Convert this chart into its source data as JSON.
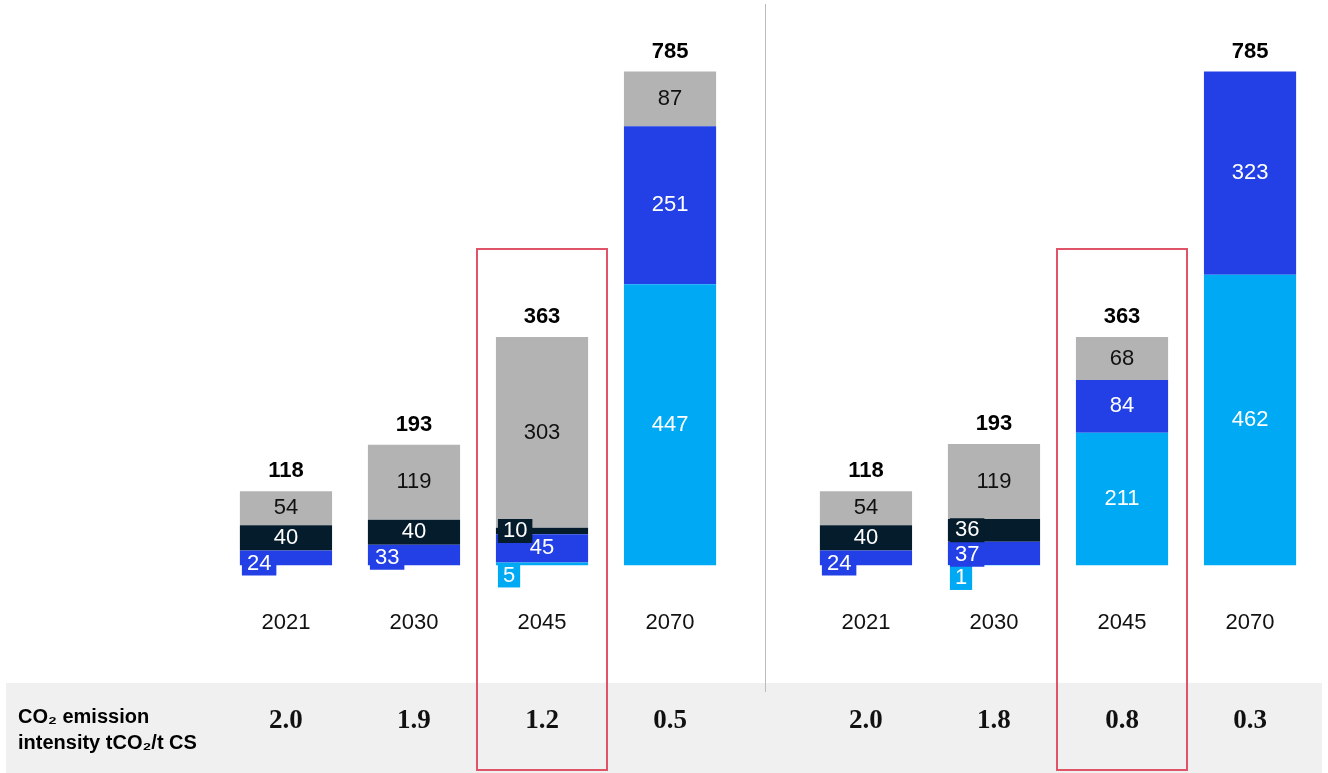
{
  "chart_data": [
    {
      "type": "bar",
      "stacked": true,
      "data_labels": true,
      "tick_labels": "x",
      "categories": [
        "2021",
        "2030",
        "2045",
        "2070"
      ],
      "series": [
        {
          "color": "#00a9f4",
          "values": [
            null,
            null,
            5,
            447
          ]
        },
        {
          "color": "#2240e6",
          "values": [
            24,
            33,
            45,
            251
          ]
        },
        {
          "color": "#051c2c",
          "values": [
            40,
            40,
            10,
            null
          ]
        },
        {
          "color": "#b3b3b3",
          "values": [
            54,
            119,
            303,
            87
          ]
        }
      ],
      "totals": [
        "118",
        "193",
        "363",
        "785"
      ],
      "annotations": [
        "CO₂ emission intensity tCO₂/t CS",
        "2.0",
        "1.9",
        "1.2",
        "0.5"
      ]
    },
    {
      "type": "bar",
      "stacked": true,
      "data_labels": true,
      "tick_labels": "x",
      "categories": [
        "2021",
        "2030",
        "2045",
        "2070"
      ],
      "series": [
        {
          "color": "#00a9f4",
          "values": [
            null,
            1,
            211,
            462
          ]
        },
        {
          "color": "#2240e6",
          "values": [
            24,
            37,
            84,
            323
          ]
        },
        {
          "color": "#051c2c",
          "values": [
            40,
            36,
            null,
            null
          ]
        },
        {
          "color": "#b3b3b3",
          "values": [
            54,
            119,
            68,
            null
          ]
        }
      ],
      "totals": [
        "118",
        "193",
        "363",
        "785"
      ],
      "annotations": [
        "2.0",
        "1.8",
        "0.8",
        "0.3"
      ]
    }
  ]
}
